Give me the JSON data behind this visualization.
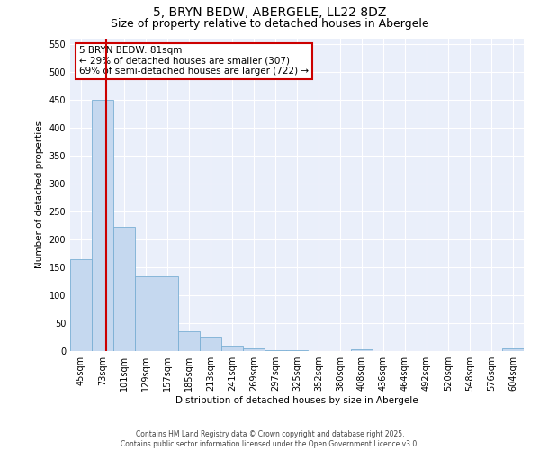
{
  "title": "5, BRYN BEDW, ABERGELE, LL22 8DZ",
  "subtitle": "Size of property relative to detached houses in Abergele",
  "xlabel": "Distribution of detached houses by size in Abergele",
  "ylabel": "Number of detached properties",
  "categories": [
    "45sqm",
    "73sqm",
    "101sqm",
    "129sqm",
    "157sqm",
    "185sqm",
    "213sqm",
    "241sqm",
    "269sqm",
    "297sqm",
    "325sqm",
    "352sqm",
    "380sqm",
    "408sqm",
    "436sqm",
    "464sqm",
    "492sqm",
    "520sqm",
    "548sqm",
    "576sqm",
    "604sqm"
  ],
  "values": [
    165,
    450,
    223,
    133,
    133,
    36,
    26,
    9,
    5,
    2,
    1,
    0,
    0,
    4,
    0,
    0,
    0,
    0,
    0,
    0,
    5
  ],
  "bar_color": "#c5d8ef",
  "bar_edge_color": "#7aafd4",
  "vline_color": "#cc0000",
  "annotation_text": "5 BRYN BEDW: 81sqm\n← 29% of detached houses are smaller (307)\n69% of semi-detached houses are larger (722) →",
  "annotation_box_color": "#ffffff",
  "annotation_edge_color": "#cc0000",
  "ylim": [
    0,
    560
  ],
  "yticks": [
    0,
    50,
    100,
    150,
    200,
    250,
    300,
    350,
    400,
    450,
    500,
    550
  ],
  "background_color": "#eaeffa",
  "grid_color": "#ffffff",
  "footer1": "Contains HM Land Registry data © Crown copyright and database right 2025.",
  "footer2": "Contains public sector information licensed under the Open Government Licence v3.0.",
  "title_fontsize": 10,
  "subtitle_fontsize": 9,
  "axis_label_fontsize": 7.5,
  "tick_fontsize": 7,
  "annotation_fontsize": 7.5,
  "footer_fontsize": 5.5
}
